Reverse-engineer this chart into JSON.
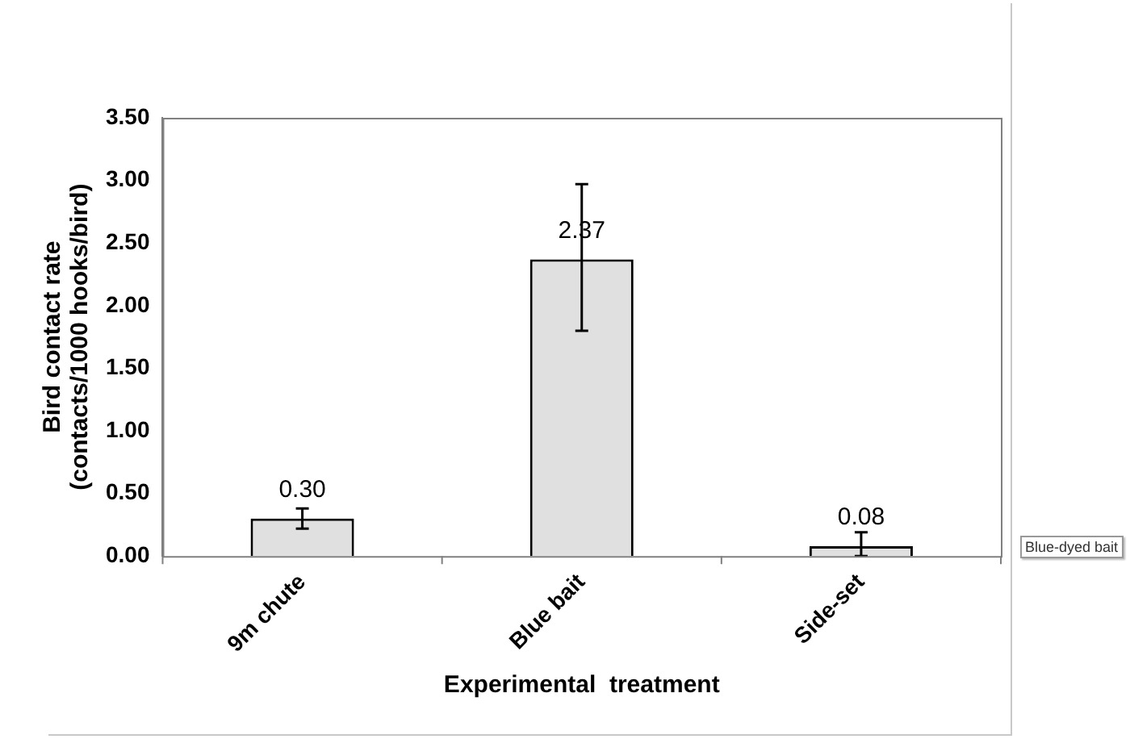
{
  "chart_data": {
    "type": "bar",
    "xlabel": "Experimental  treatment",
    "ylabel": "Bird contact rate\n(contacts/1000 hooks/bird)",
    "categories": [
      "9m chute",
      "Blue bait",
      "Side-set"
    ],
    "values": [
      0.3,
      2.37,
      0.08
    ],
    "errors": [
      [
        0.22,
        0.38
      ],
      [
        1.8,
        2.97
      ],
      [
        0.0,
        0.19
      ]
    ],
    "value_labels": [
      "0.30",
      "2.37",
      "0.08"
    ],
    "color": "#e0e0e0",
    "ylim": [
      0,
      3.5
    ],
    "yticks": [
      {
        "value": 0,
        "label": "0.00"
      },
      {
        "value": 0.5,
        "label": "0.50"
      },
      {
        "value": 1,
        "label": "1.00"
      },
      {
        "value": 1.5,
        "label": "1.50"
      },
      {
        "value": 2,
        "label": "2.00"
      },
      {
        "value": 2.5,
        "label": "2.50"
      },
      {
        "value": 3,
        "label": "3.00"
      },
      {
        "value": 3.5,
        "label": "3.50"
      }
    ],
    "grid": false,
    "legend": false,
    "annotations": [
      "Blue-dyed bait"
    ]
  }
}
